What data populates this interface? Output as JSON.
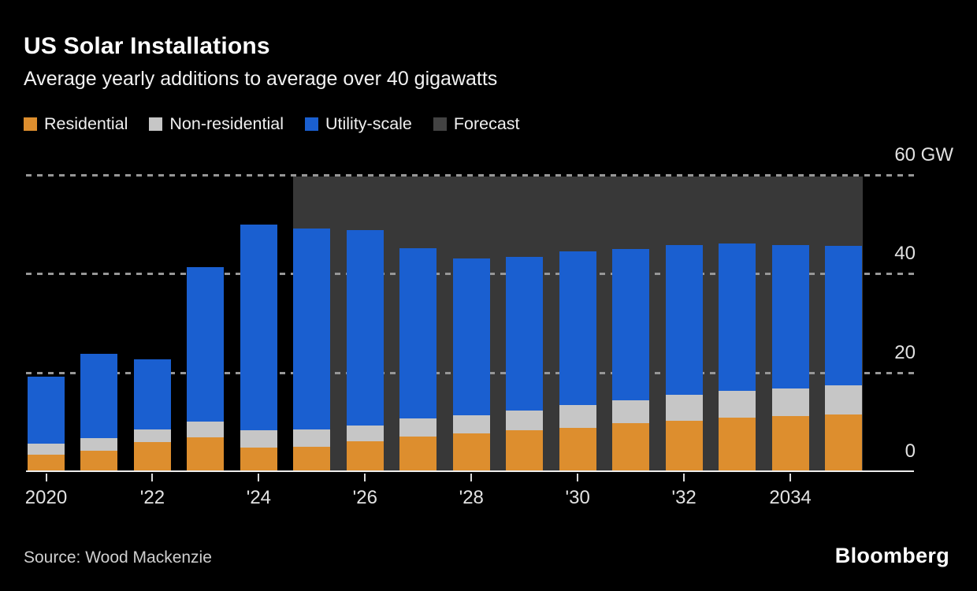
{
  "header": {
    "title": "US Solar Installations",
    "subtitle": "Average yearly additions to average over 40 gigawatts"
  },
  "legend": [
    {
      "label": "Residential",
      "color": "#DD8E2E"
    },
    {
      "label": "Non-residential",
      "color": "#C6C6C6"
    },
    {
      "label": "Utility-scale",
      "color": "#1A5FD0"
    },
    {
      "label": "Forecast",
      "color": "#434343"
    }
  ],
  "chart_data": {
    "type": "bar",
    "stacked": true,
    "unit": "GW",
    "title": "US Solar Installations",
    "subtitle": "Average yearly additions to average over 40 gigawatts",
    "categories": [
      2020,
      2021,
      2022,
      2023,
      2024,
      2025,
      2026,
      2027,
      2028,
      2029,
      2030,
      2031,
      2032,
      2033,
      2034,
      2035
    ],
    "series": [
      {
        "name": "Residential",
        "color": "#DD8E2E",
        "values": [
          3.3,
          4.1,
          5.9,
          6.8,
          4.8,
          5.0,
          6.0,
          7.0,
          7.6,
          8.3,
          8.7,
          9.7,
          10.2,
          10.8,
          11.2,
          11.4
        ]
      },
      {
        "name": "Non-residential",
        "color": "#C6C6C6",
        "values": [
          2.3,
          2.6,
          2.5,
          3.2,
          3.5,
          3.4,
          3.2,
          3.6,
          3.7,
          3.9,
          4.7,
          4.6,
          5.2,
          5.5,
          5.6,
          6.0
        ]
      },
      {
        "name": "Utility-scale",
        "color": "#1A5FD0",
        "values": [
          13.6,
          17.0,
          14.3,
          31.2,
          41.6,
          40.7,
          39.6,
          34.5,
          31.7,
          31.1,
          31.1,
          30.7,
          30.4,
          29.7,
          29.0,
          28.2
        ]
      }
    ],
    "totals": [
      19.2,
      23.7,
      22.7,
      41.2,
      49.9,
      49.1,
      48.8,
      45.1,
      43.0,
      43.3,
      44.5,
      45.0,
      45.8,
      46.0,
      45.8,
      45.6
    ],
    "forecast": {
      "label": "Forecast",
      "start_year": 2025,
      "end_year": 2035,
      "band_top_gw": 59.6,
      "color": "#383838"
    },
    "y_axis": {
      "ticks": [
        0,
        20,
        40,
        60
      ],
      "unit_label": "GW",
      "max": 60,
      "gridlines": "dashed",
      "labels_position": "right"
    },
    "x_axis": {
      "tick_years": [
        2020,
        2022,
        2024,
        2026,
        2028,
        2030,
        2032,
        2034
      ],
      "tick_labels": [
        "2020",
        "'22",
        "'24",
        "'26",
        "'28",
        "'30",
        "'32",
        "2034"
      ]
    }
  },
  "footer": {
    "source": "Source: Wood Mackenzie",
    "brand": "Bloomberg"
  }
}
